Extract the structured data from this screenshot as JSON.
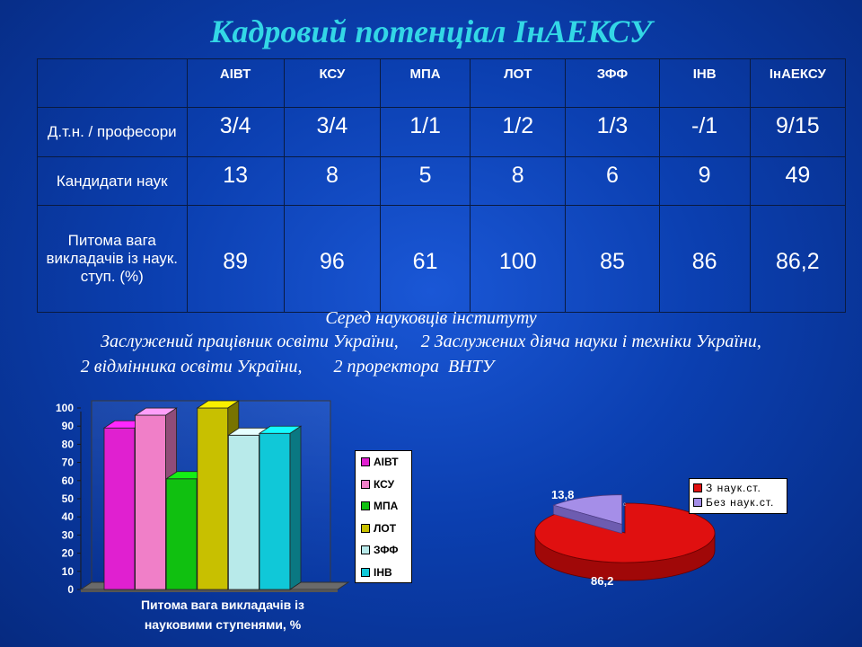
{
  "title": "Кадровий потенціал ІнАЕКСУ",
  "table": {
    "headers": [
      "",
      "АІВТ",
      "КСУ",
      "МПА",
      "ЛОТ",
      "ЗФФ",
      "ІНВ",
      "ІнАЕКСУ"
    ],
    "rows": [
      {
        "label": "Д.т.н. / професори",
        "values": [
          "3/4",
          "3/4",
          "1/1",
          "1/2",
          "1/3",
          "-/1",
          "9/15"
        ]
      },
      {
        "label": "Кандидати наук",
        "values": [
          "13",
          "8",
          "5",
          "8",
          "6",
          "9",
          "49"
        ]
      },
      {
        "label": "Питома вага викладачів із наук. ступ. (%)",
        "values": [
          "89",
          "96",
          "61",
          "100",
          "85",
          "86",
          "86,2"
        ]
      }
    ]
  },
  "notes": {
    "line1": "Серед науковців інституту",
    "line2": "Заслужений працівник освіти України,     2 Заслужених діяча науки і техніки України,",
    "line3": "2 відмінника освіти України,       2 проректора  ВНТУ"
  },
  "colors": {
    "background": "#0b3fb0",
    "title": "#33d7e6",
    "table_grid": "#0a1a40",
    "text": "#ffffff"
  },
  "chart_data": [
    {
      "type": "bar",
      "title": "Питома вага викладачів із науковими ступенями, %",
      "categories": [
        "АІВТ",
        "КСУ",
        "МПА",
        "ЛОТ",
        "ЗФФ",
        "ІНВ"
      ],
      "values": [
        89,
        96,
        61,
        100,
        85,
        86
      ],
      "colors": [
        "#e020d0",
        "#f07fc8",
        "#10c010",
        "#c8c000",
        "#b8eaea",
        "#10c8d8"
      ],
      "ylim": [
        0,
        100
      ],
      "yticks": [
        "0",
        "10",
        "20",
        "30",
        "40",
        "50",
        "60",
        "70",
        "80",
        "90",
        "100"
      ],
      "grid": false,
      "legend": "right",
      "legend_entries": [
        "АІВТ",
        "КСУ",
        "МПА",
        "ЛОТ",
        "ЗФФ",
        "ІНВ"
      ]
    },
    {
      "type": "pie",
      "categories": [
        "З наук.ст.",
        "Без наук.ст."
      ],
      "values": [
        86.2,
        13.8
      ],
      "data_labels": [
        "86,2",
        "13,8"
      ],
      "colors": [
        "#e01010",
        "#a58ee8"
      ],
      "legend": "right",
      "legend_entries": [
        "З наук.ст.",
        "Без наук.ст."
      ]
    }
  ]
}
